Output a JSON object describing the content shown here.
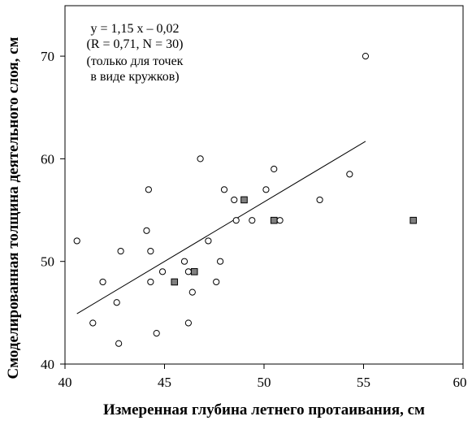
{
  "chart_data": {
    "type": "scatter",
    "xlabel": "Измеренная глубина летнего протаивания, см",
    "ylabel": "Смоделированная толщина деятельного слоя, см",
    "xlim": [
      40,
      60
    ],
    "ylim": [
      40,
      75
    ],
    "xticks": [
      "40",
      "45",
      "50",
      "55",
      "60"
    ],
    "yticks": [
      "40",
      "50",
      "60",
      "70"
    ],
    "annotation": [
      "y = 1,15 x – 0,02",
      "(R = 0,71, N = 30)",
      "(только для точек",
      "в виде кружков)"
    ],
    "series": [
      {
        "marker": "circle-open",
        "points": [
          [
            40.6,
            52
          ],
          [
            41.4,
            44
          ],
          [
            41.9,
            48
          ],
          [
            42.6,
            46
          ],
          [
            42.7,
            42
          ],
          [
            42.8,
            51
          ],
          [
            44.1,
            53
          ],
          [
            44.2,
            57
          ],
          [
            44.3,
            48
          ],
          [
            44.3,
            51
          ],
          [
            44.6,
            43
          ],
          [
            44.9,
            49
          ],
          [
            46.0,
            50
          ],
          [
            46.2,
            44
          ],
          [
            46.2,
            49
          ],
          [
            46.4,
            47
          ],
          [
            46.8,
            60
          ],
          [
            47.2,
            52
          ],
          [
            47.6,
            48
          ],
          [
            47.8,
            50
          ],
          [
            48.0,
            57
          ],
          [
            48.5,
            56
          ],
          [
            48.6,
            54
          ],
          [
            49.4,
            54
          ],
          [
            50.1,
            57
          ],
          [
            50.5,
            59
          ],
          [
            50.8,
            54
          ],
          [
            52.8,
            56
          ],
          [
            54.3,
            58.5
          ],
          [
            55.1,
            70
          ]
        ]
      },
      {
        "marker": "square-filled",
        "color": "#808080",
        "points": [
          [
            45.5,
            48
          ],
          [
            46.5,
            49
          ],
          [
            49.0,
            56
          ],
          [
            50.5,
            54
          ],
          [
            57.5,
            54
          ]
        ]
      }
    ],
    "trendline": {
      "slope": 1.15,
      "intercept": -0.02,
      "x_range": [
        40.6,
        55.1
      ]
    }
  }
}
